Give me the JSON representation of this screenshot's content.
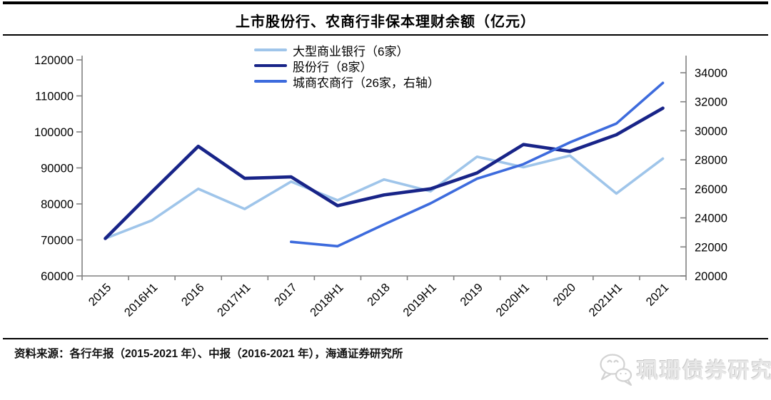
{
  "header": {
    "title": "上市股份行、农商行非保本理财余额（亿元）"
  },
  "legend": {
    "items": [
      {
        "label": "大型商业银行（6家）",
        "color": "#9fc5ea"
      },
      {
        "label": "股份行（8家）",
        "color": "#182488"
      },
      {
        "label": "城商农商行（26家，右轴）",
        "color": "#3d6bdd"
      }
    ]
  },
  "chart_data": {
    "type": "line",
    "title": "上市股份行、农商行非保本理财余额（亿元）",
    "categories": [
      "2015",
      "2016H1",
      "2016",
      "2017H1",
      "2017",
      "2018H1",
      "2018",
      "2019H1",
      "2019",
      "2020H1",
      "2020",
      "2021H1",
      "2021"
    ],
    "series": [
      {
        "name": "大型商业银行（6家）",
        "axis": "left",
        "color": "#9fc5ea",
        "values": [
          70400,
          75400,
          84200,
          78600,
          86200,
          81000,
          86800,
          83500,
          93100,
          90200,
          93400,
          82900,
          92600
        ]
      },
      {
        "name": "股份行（8家）",
        "axis": "left",
        "color": "#182488",
        "values": [
          70400,
          83300,
          96000,
          87100,
          87500,
          79500,
          82500,
          84200,
          88600,
          96500,
          94600,
          99200,
          106600
        ]
      },
      {
        "name": "城商农商行（26家，右轴）",
        "axis": "right",
        "color": "#3d6bdd",
        "values": [
          null,
          null,
          null,
          null,
          22350,
          22050,
          23550,
          25000,
          26700,
          27700,
          29200,
          30500,
          33300
        ]
      }
    ],
    "left_axis": {
      "min": 60000,
      "max": 120000,
      "step": 10000,
      "ticks": [
        120000,
        110000,
        100000,
        90000,
        80000,
        70000,
        60000
      ]
    },
    "right_axis": {
      "min": 20000,
      "max": 34000,
      "step": 2000,
      "ticks": [
        34000,
        32000,
        30000,
        28000,
        26000,
        24000,
        22000,
        20000
      ]
    },
    "grid": false,
    "legend_position": "top-center"
  },
  "footer": {
    "source_text": "资料来源：各行年报（2015-2021 年）、中报（2016-2021 年），海通证券研究所"
  },
  "watermark": {
    "icon": "wechat-chat-bubbles",
    "text": "珮珊债券研究"
  }
}
